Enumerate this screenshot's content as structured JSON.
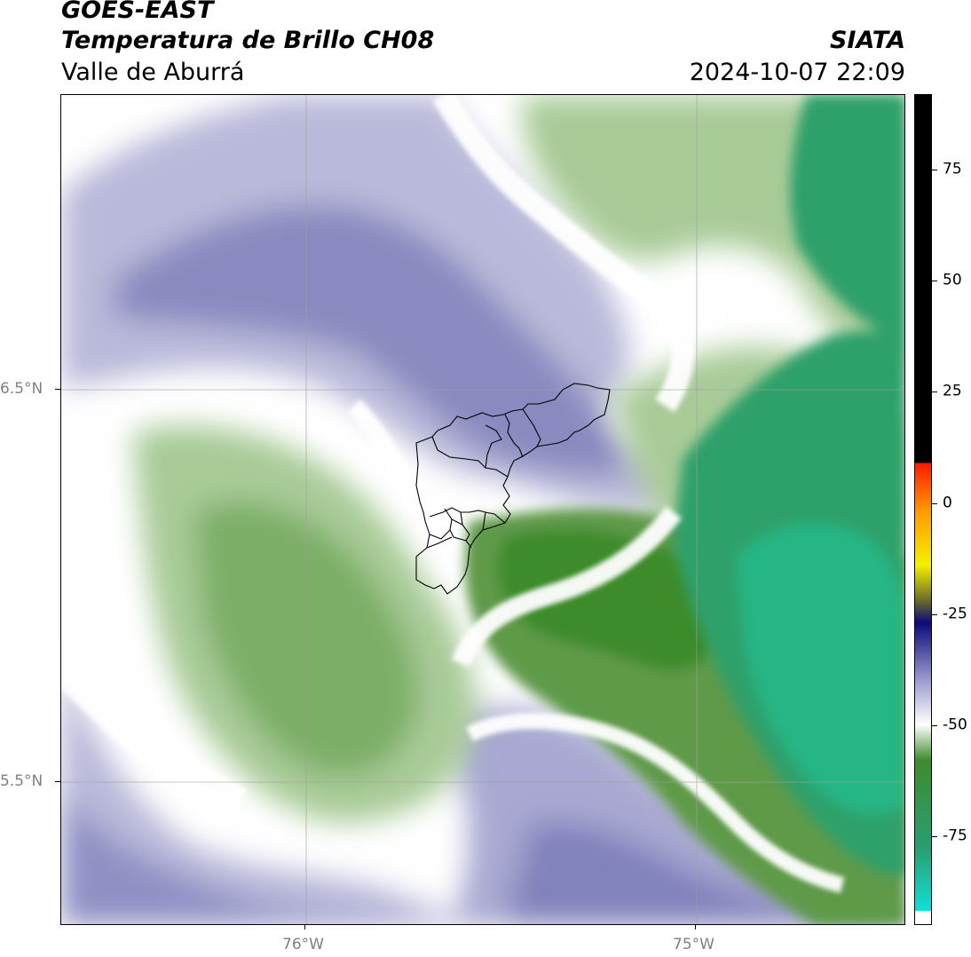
{
  "header": {
    "satellite": "GOES-EAST",
    "product": "Temperatura de Brillo CH08",
    "region": "Valle de Aburrá",
    "agency": "SIATA",
    "timestamp": "2024-10-07 22:09"
  },
  "map": {
    "lon_range": [
      -76.62,
      -74.47
    ],
    "lat_range": [
      5.14,
      7.25
    ],
    "lon_ticks": [
      {
        "value": -76,
        "label": "76°W"
      },
      {
        "value": -75,
        "label": "75°W"
      }
    ],
    "lat_ticks": [
      {
        "value": 6.5,
        "label": "6.5°N"
      },
      {
        "value": 5.5,
        "label": "5.5°N"
      }
    ],
    "gridlines": true
  },
  "colorbar": {
    "units": "",
    "range": [
      -95,
      92
    ],
    "ticks": [
      {
        "value": 75,
        "label": "75"
      },
      {
        "value": 50,
        "label": "50"
      },
      {
        "value": 25,
        "label": "25"
      },
      {
        "value": 0,
        "label": "0"
      },
      {
        "value": -25,
        "label": "-25"
      },
      {
        "value": -50,
        "label": "-50"
      },
      {
        "value": -75,
        "label": "-75"
      }
    ],
    "colors": {
      "black": "#000000",
      "red": "#ff1a00",
      "orange": "#ff9b00",
      "yellow": "#f5f000",
      "olive": "#6b6b2a",
      "navy": "#0a0a7a",
      "lavender": "#9c9ccf",
      "white": "#ffffff",
      "green": "#3e8c2e",
      "teal": "#2a9e74",
      "cyan": "#10e0d8"
    }
  },
  "field_colors": {
    "purple": "#8080b8",
    "light_purple": "#b9b9da",
    "light_green": "#a9cb98",
    "green": "#5e9a48",
    "dark_green": "#3c8b2c",
    "sea_green": "#2fa06a",
    "teal_green": "#27b584"
  }
}
